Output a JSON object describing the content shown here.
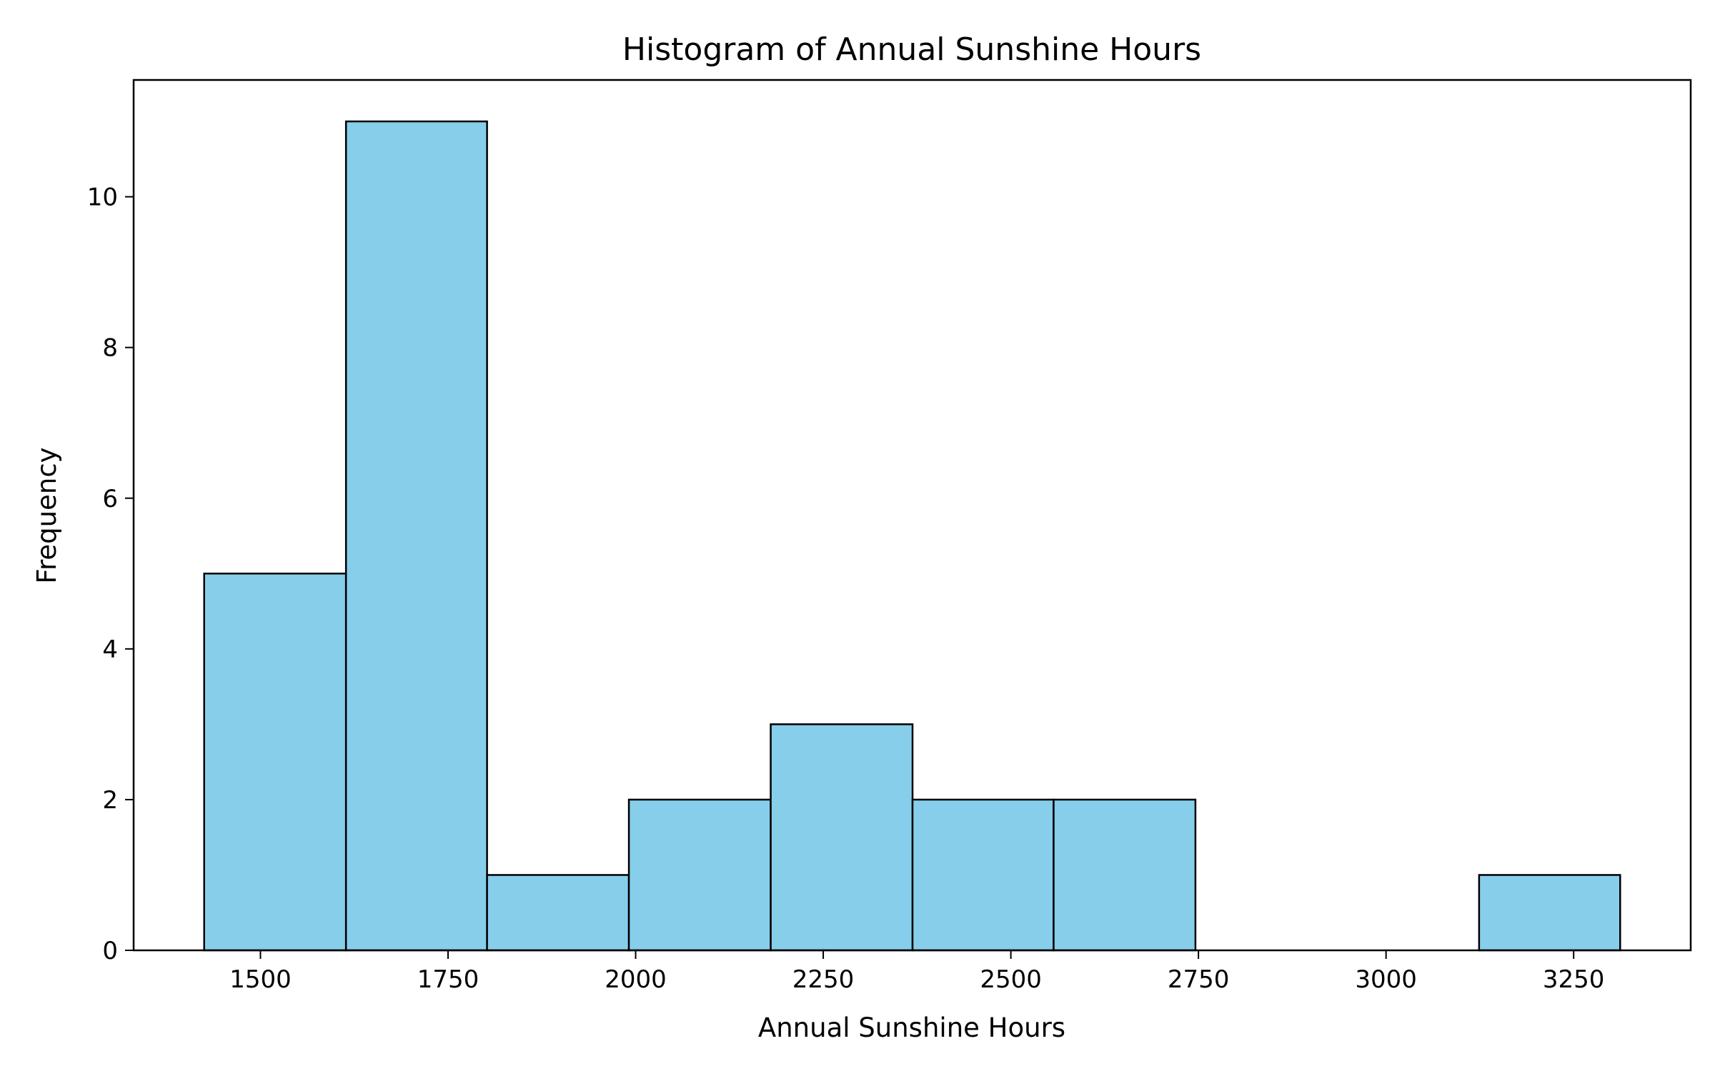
{
  "chart_data": {
    "type": "bar",
    "subtype": "histogram",
    "title": "Histogram of Annual Sunshine Hours",
    "xlabel": "Annual Sunshine Hours",
    "ylabel": "Frequency",
    "bins": [
      {
        "start": 1425,
        "end": 1614,
        "count": 5
      },
      {
        "start": 1614,
        "end": 1802,
        "count": 11
      },
      {
        "start": 1802,
        "end": 1991,
        "count": 1
      },
      {
        "start": 1991,
        "end": 2180,
        "count": 2
      },
      {
        "start": 2180,
        "end": 2369,
        "count": 3
      },
      {
        "start": 2369,
        "end": 2557,
        "count": 2
      },
      {
        "start": 2557,
        "end": 2746,
        "count": 2
      },
      {
        "start": 2746,
        "end": 2935,
        "count": 0
      },
      {
        "start": 2935,
        "end": 3124,
        "count": 0
      },
      {
        "start": 3124,
        "end": 3312,
        "count": 1
      }
    ],
    "xlim": [
      1331,
      3406
    ],
    "ylim": [
      0,
      11.55
    ],
    "xticks": [
      1500,
      1750,
      2000,
      2250,
      2500,
      2750,
      3000,
      3250
    ],
    "yticks": [
      0,
      2,
      4,
      6,
      8,
      10
    ],
    "grid": false,
    "legend": "none",
    "colors": {
      "bar_fill": "#87CEEB",
      "bar_edge": "#000000",
      "axes": "#000000",
      "background": "#ffffff"
    }
  }
}
